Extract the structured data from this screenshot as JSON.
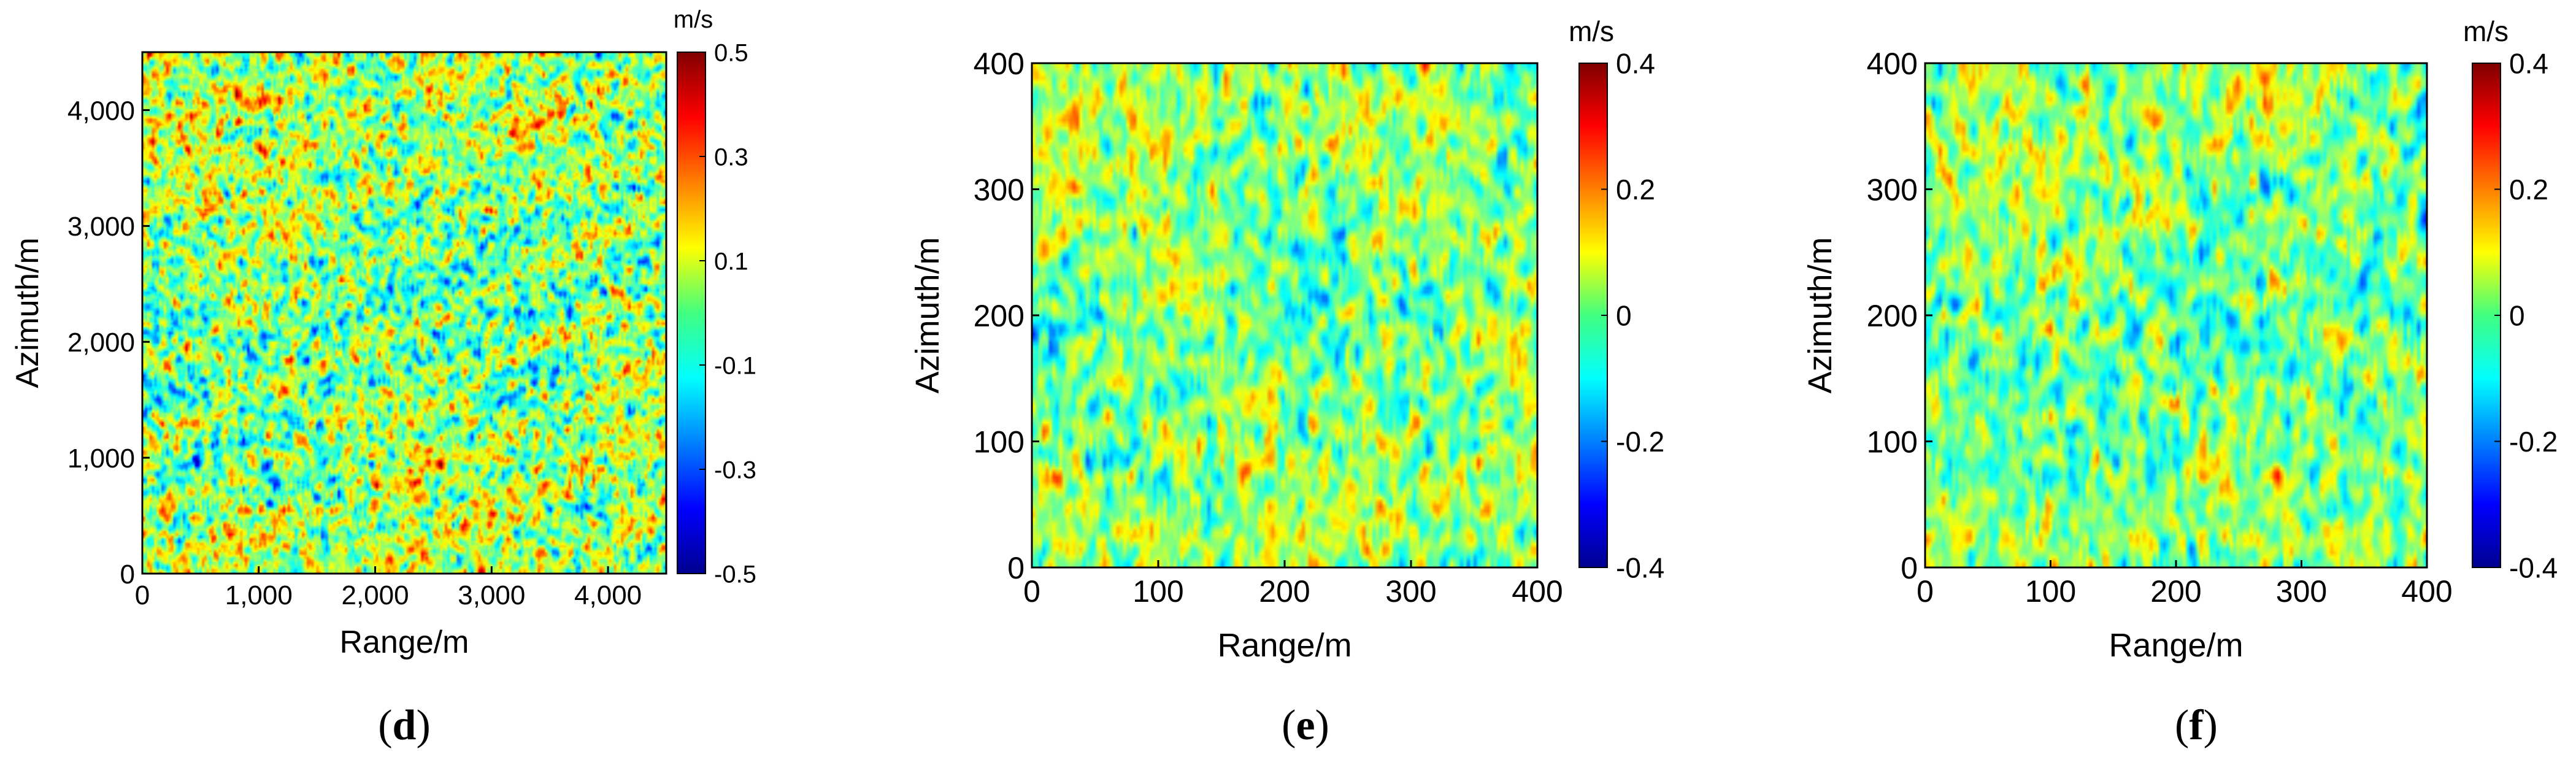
{
  "figure_id": "figure-d-e-f",
  "chart_data": [
    {
      "type": "heatmap",
      "panel_label": "d",
      "xlabel": "Range/m",
      "ylabel": "Azimuth/m",
      "xlim": [
        0,
        4500
      ],
      "ylim": [
        0,
        4500
      ],
      "xticks": [
        0,
        1000,
        2000,
        3000,
        4000
      ],
      "xtick_labels": [
        "0",
        "1,000",
        "2,000",
        "3,000",
        "4,000"
      ],
      "yticks": [
        0,
        1000,
        2000,
        3000,
        4000
      ],
      "ytick_labels": [
        "0",
        "1,000",
        "2,000",
        "3,000",
        "4,000"
      ],
      "colorbar": {
        "unit": "m/s",
        "range": [
          -0.5,
          0.5
        ],
        "ticks": [
          -0.5,
          -0.3,
          -0.1,
          0.1,
          0.3,
          0.5
        ],
        "tick_labels": [
          "-0.5",
          "-0.3",
          "-0.1",
          "0.1",
          "0.3",
          "0.5"
        ],
        "colormap": "jet"
      },
      "field": {
        "texture": "fine-grained noise with diagonal banding",
        "mean": 0.02,
        "spread": 0.13
      }
    },
    {
      "type": "heatmap",
      "panel_label": "e",
      "xlabel": "Range/m",
      "ylabel": "Azimuth/m",
      "xlim": [
        0,
        400
      ],
      "ylim": [
        0,
        400
      ],
      "xticks": [
        0,
        100,
        200,
        300,
        400
      ],
      "xtick_labels": [
        "0",
        "100",
        "200",
        "300",
        "400"
      ],
      "yticks": [
        0,
        100,
        200,
        300,
        400
      ],
      "ytick_labels": [
        "0",
        "100",
        "200",
        "300",
        "400"
      ],
      "colorbar": {
        "unit": "m/s",
        "range": [
          -0.4,
          0.4
        ],
        "ticks": [
          -0.4,
          -0.2,
          0,
          0.2,
          0.4
        ],
        "tick_labels": [
          "-0.4",
          "-0.2",
          "0",
          "0.2",
          "0.4"
        ],
        "colormap": "jet"
      },
      "field": {
        "texture": "coarse wave streaks elongated in azimuth",
        "mean": 0.01,
        "spread": 0.08
      }
    },
    {
      "type": "heatmap",
      "panel_label": "f",
      "xlabel": "Range/m",
      "ylabel": "Azimuth/m",
      "xlim": [
        0,
        400
      ],
      "ylim": [
        0,
        400
      ],
      "xticks": [
        0,
        100,
        200,
        300,
        400
      ],
      "xtick_labels": [
        "0",
        "100",
        "200",
        "300",
        "400"
      ],
      "yticks": [
        0,
        100,
        200,
        300,
        400
      ],
      "ytick_labels": [
        "0",
        "100",
        "200",
        "300",
        "400"
      ],
      "colorbar": {
        "unit": "m/s",
        "range": [
          -0.4,
          0.4
        ],
        "ticks": [
          -0.4,
          -0.2,
          0,
          0.2,
          0.4
        ],
        "tick_labels": [
          "-0.4",
          "-0.2",
          "0",
          "0.2",
          "0.4"
        ],
        "colormap": "jet"
      },
      "field": {
        "texture": "coarse wave streaks elongated in azimuth",
        "mean": 0.0,
        "spread": 0.08
      }
    }
  ]
}
